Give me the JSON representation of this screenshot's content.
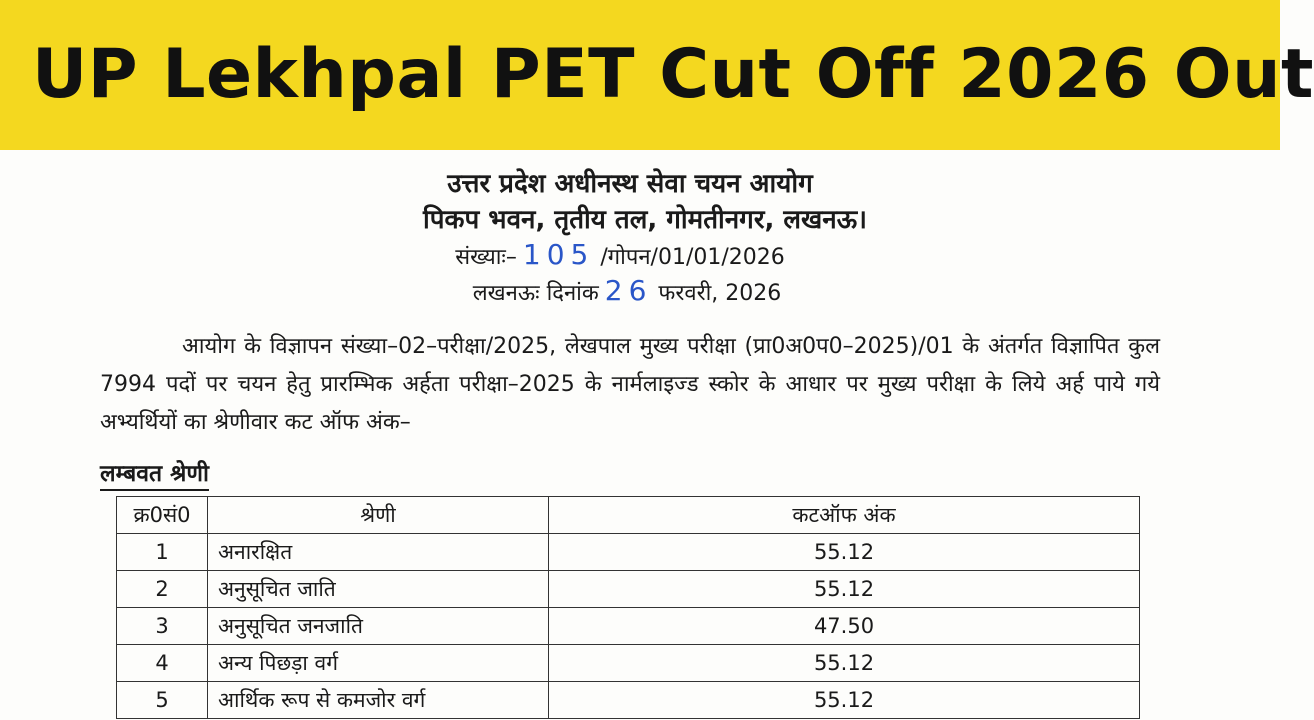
{
  "banner": {
    "title": "UP Lekhpal PET Cut Off 2026 Out"
  },
  "notice": {
    "organization": "उत्तर प्रदेश अधीनस्थ सेवा चयन आयोग",
    "address": "पिकप भवन, तृतीय तल, गोमतीनगर, लखनऊ।",
    "ref_prefix": "संख्याः–",
    "ref_number": "105",
    "ref_suffix": "/गोपन/01/01/2026",
    "date_prefix": "लखनऊः  दिनांक",
    "date_day": "26",
    "date_suffix": "फरवरी, 2026",
    "paragraph": "आयोग के विज्ञापन संख्या–02–परीक्षा/2025, लेखपाल मुख्य परीक्षा (प्रा0अ0प0–2025)/01 के अंतर्गत विज्ञापित कुल 7994 पदों पर चयन हेतु प्रारम्भिक अर्हता परीक्षा–2025 के नार्मलाइज्ड स्कोर के आधार पर मुख्य परीक्षा के लिये अर्ह पाये गये अभ्यर्थियों का श्रेणीवार कट ऑफ अंक–"
  },
  "section_title": "लम्बवत श्रेणी",
  "table": {
    "headers": [
      "क्र0सं0",
      "श्रेणी",
      "कटऑफ अंक"
    ],
    "rows": [
      [
        "1",
        "अनारक्षित",
        "55.12"
      ],
      [
        "2",
        "अनुसूचित जाति",
        "55.12"
      ],
      [
        "3",
        "अनुसूचित जनजाति",
        "47.50"
      ],
      [
        "4",
        "अन्य पिछड़ा वर्ग",
        "55.12"
      ],
      [
        "5",
        "आर्थिक रूप से कमजोर वर्ग",
        "55.12"
      ]
    ]
  }
}
